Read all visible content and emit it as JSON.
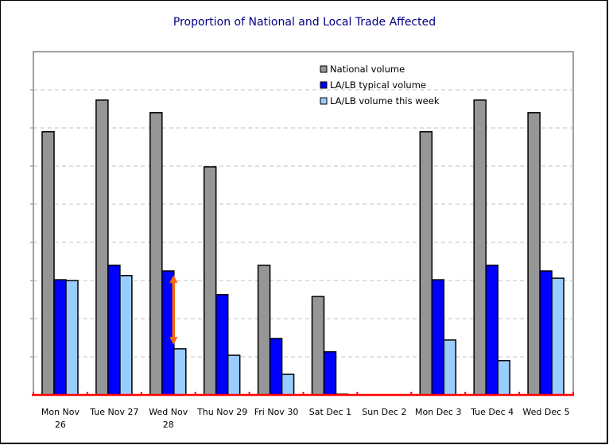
{
  "chart_data": {
    "type": "bar",
    "title": "Proportion of National and Local Trade Affected",
    "xlabel": "",
    "ylabel": "",
    "ylim": [
      0,
      9
    ],
    "grid": true,
    "y_tick_labels_visible": false,
    "legend_position": "top-right",
    "categories": [
      [
        "Mon Nov",
        "26"
      ],
      [
        "Tue Nov 27"
      ],
      [
        "Wed Nov",
        "28"
      ],
      [
        "Thu Nov 29"
      ],
      [
        "Fri Nov 30"
      ],
      [
        "Sat Dec 1"
      ],
      [
        "Sun Dec 2"
      ],
      [
        "Mon Dec 3"
      ],
      [
        "Tue Dec 4"
      ],
      [
        "Wed Dec 5"
      ]
    ],
    "series": [
      {
        "name": "National volume",
        "color": "#969696",
        "values": [
          6.9,
          7.73,
          7.4,
          5.98,
          3.4,
          2.58,
          0,
          6.9,
          7.73,
          7.4
        ]
      },
      {
        "name": "LA/LB typical volume",
        "color": "#0000FF",
        "values": [
          3.02,
          3.4,
          3.25,
          2.63,
          1.48,
          1.13,
          0,
          3.02,
          3.4,
          3.25
        ]
      },
      {
        "name": "LA/LB volume this week",
        "color": "#99CCFF",
        "values": [
          3.0,
          3.13,
          1.21,
          1.04,
          0.54,
          0.02,
          0,
          1.44,
          0.9,
          3.06
        ]
      }
    ],
    "annotations": [
      {
        "type": "double-arrow",
        "category_index": 2,
        "from_series": 1,
        "to_series": 2,
        "color": "#FF6600"
      }
    ],
    "axis_color": "#FF0000",
    "grid_color": "#C0C0C0"
  }
}
